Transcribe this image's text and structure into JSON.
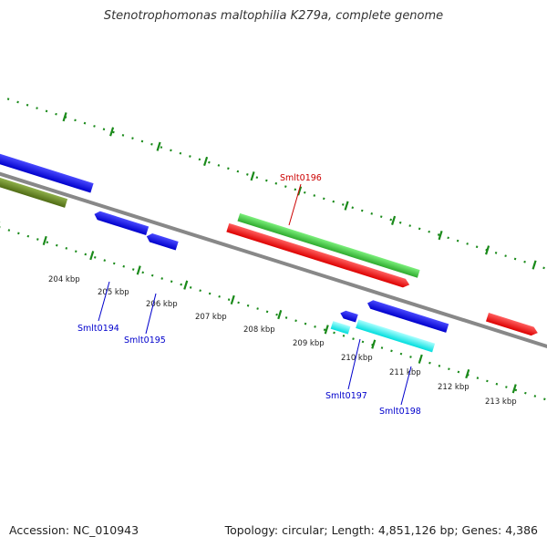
{
  "title": "Stenotrophomonas maltophilia K279a, complete genome",
  "footer": {
    "accession": "Accession: NC_010943",
    "summary": "Topology: circular; Length: 4,851,126 bp; Genes: 4,386"
  },
  "kbp_labels": [
    "204 kbp",
    "205 kbp",
    "206 kbp",
    "207 kbp",
    "208 kbp",
    "209 kbp",
    "210 kbp",
    "211 kbp",
    "212 kbp",
    "213 kbp"
  ],
  "gene_labels": {
    "smlt0194": "Smlt0194",
    "smlt0195": "Smlt0195",
    "smlt0196": "Smlt0196",
    "smlt0197": "Smlt0197",
    "smlt0198": "Smlt0198"
  },
  "colors": {
    "forward_cds": "#2ecc2e",
    "reverse_cds": "#ff1a1a",
    "blue_cds": "#1010ee",
    "cyan_cds": "#00eeee",
    "olive_cds": "#6b8e23",
    "tick_green": "#1a8a1a",
    "backbone": "#888888",
    "label_blue": "#0000cc",
    "label_red": "#cc0000"
  }
}
